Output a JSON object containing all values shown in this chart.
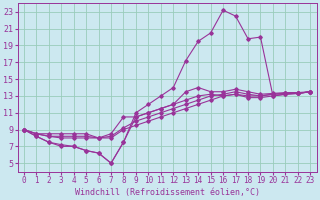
{
  "bg_color": "#cce8f0",
  "line_color": "#993399",
  "grid_color": "#99ccbb",
  "xlabel": "Windchill (Refroidissement éolien,°C)",
  "ylabel_ticks": [
    5,
    7,
    9,
    11,
    13,
    15,
    17,
    19,
    21,
    23
  ],
  "xtick_labels": [
    "0",
    "1",
    "2",
    "3",
    "4",
    "5",
    "6",
    "7",
    "8",
    "9",
    "10",
    "11",
    "12",
    "13",
    "14",
    "15",
    "16",
    "17",
    "18",
    "19",
    "20",
    "21",
    "22",
    "23"
  ],
  "ylim": [
    4,
    24
  ],
  "xlim": [
    -0.5,
    23.5
  ],
  "figsize": [
    3.2,
    2.0
  ],
  "dpi": 100,
  "series": [
    [
      9.0,
      8.2,
      7.5,
      7.2,
      7.0,
      6.5,
      6.2,
      5.0,
      7.5,
      10.5,
      11.0,
      11.5,
      12.0,
      12.5,
      13.0,
      13.2,
      13.0,
      13.2,
      12.8,
      12.8,
      13.0,
      13.2,
      13.3,
      13.5
    ],
    [
      9.0,
      8.5,
      8.2,
      8.0,
      8.0,
      8.0,
      8.0,
      8.0,
      9.0,
      9.5,
      10.0,
      10.5,
      11.0,
      11.5,
      12.0,
      12.5,
      13.0,
      13.2,
      13.0,
      13.0,
      13.2,
      13.3,
      13.3,
      13.5
    ],
    [
      9.0,
      8.5,
      8.2,
      8.2,
      8.2,
      8.2,
      8.0,
      8.2,
      9.2,
      10.0,
      10.5,
      11.0,
      11.5,
      12.0,
      12.5,
      13.0,
      13.2,
      13.5,
      13.2,
      13.0,
      13.2,
      13.3,
      13.3,
      13.5
    ],
    [
      9.0,
      8.5,
      8.5,
      8.5,
      8.5,
      8.5,
      8.0,
      8.5,
      10.5,
      10.5,
      11.0,
      11.5,
      12.0,
      13.5,
      14.0,
      13.5,
      13.5,
      13.8,
      13.5,
      13.2,
      13.3,
      13.4,
      13.4,
      13.5
    ],
    [
      9.0,
      8.2,
      7.5,
      7.0,
      7.0,
      6.5,
      6.2,
      5.0,
      7.5,
      11.0,
      12.0,
      13.0,
      14.0,
      17.2,
      19.5,
      20.5,
      23.2,
      22.5,
      19.8,
      20.0,
      13.0,
      13.2,
      13.3,
      13.5
    ]
  ],
  "label_fontsize": 6.0,
  "tick_fontsize": 5.5
}
